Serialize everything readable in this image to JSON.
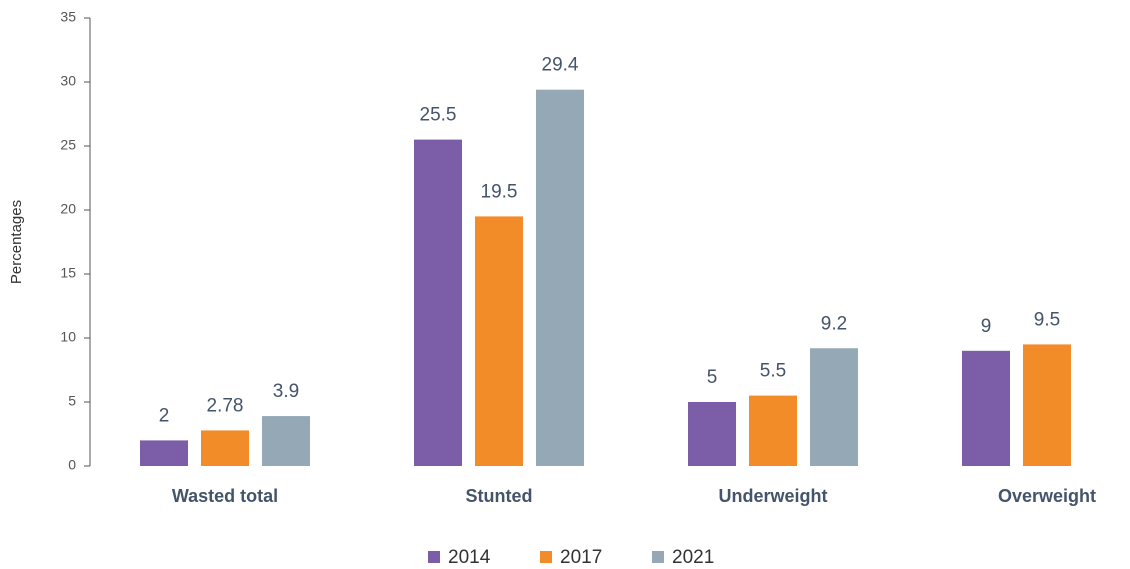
{
  "chart_data": {
    "type": "bar",
    "y_label": "Percentages",
    "categories": [
      "Wasted total",
      "Stunted",
      "Underweight",
      "Overweight"
    ],
    "series": [
      {
        "name": "2014",
        "color": "#7b5ea7",
        "values": [
          2,
          25.5,
          5,
          9
        ]
      },
      {
        "name": "2017",
        "color": "#f28c28",
        "values": [
          2.78,
          19.5,
          5.5,
          9.5
        ]
      },
      {
        "name": "2021",
        "color": "#94a9b5",
        "values": [
          3.9,
          29.4,
          9.2,
          null
        ]
      }
    ],
    "ylim": [
      0,
      35
    ],
    "yticks": [
      0,
      5,
      10,
      15,
      20,
      25,
      30,
      35
    ],
    "grid": false,
    "legend": "bottom"
  }
}
